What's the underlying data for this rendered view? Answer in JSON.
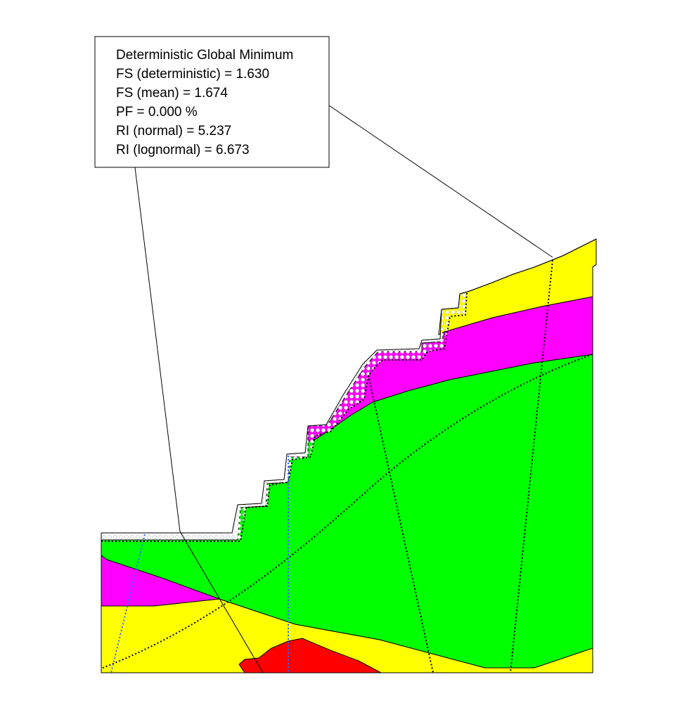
{
  "info_box": {
    "title": "Deterministic Global Minimum",
    "lines": [
      "FS (deterministic) = 1.630",
      "FS (mean) = 1.674",
      "PF = 0.000 %",
      "RI (normal) = 5.237",
      "RI (lognormal) = 6.673"
    ]
  },
  "colors": {
    "yellow_layer": "#ffff00",
    "magenta_layer": "#ff00ff",
    "green_layer": "#00ff00",
    "red_layer": "#ff0000",
    "outline": "#000000",
    "dotted_line": "#000000",
    "blue_dotted_line": "#3366ff",
    "bead_fill": "#ffffff"
  }
}
